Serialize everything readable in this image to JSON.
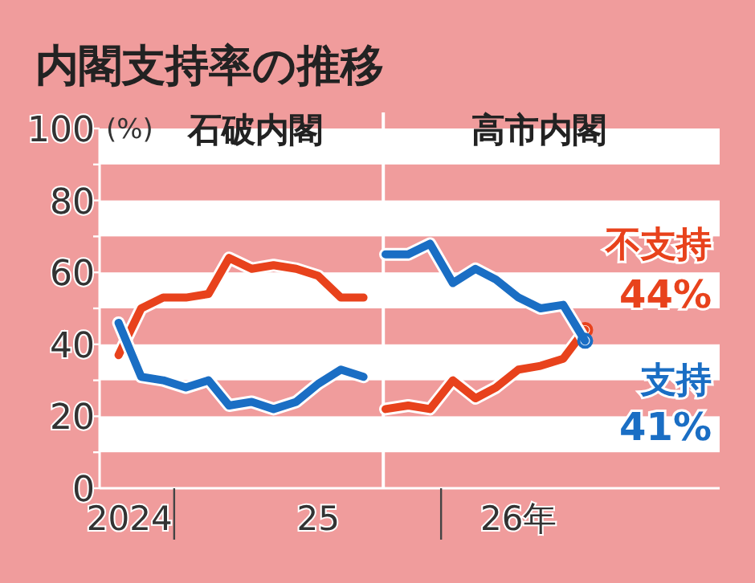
{
  "chart_data": {
    "type": "line",
    "title": "内閣支持率の推移",
    "ylabel": "(%)",
    "annotations": [
      "石破内閣",
      "高市内閣"
    ],
    "x": [
      "2024-10",
      "2024-11",
      "2024-12",
      "2025-01",
      "2025-02",
      "2025-03",
      "2025-04",
      "2025-05",
      "2025-06",
      "2025-07",
      "2025-08",
      "2025-09",
      "2025-10",
      "2025-11",
      "2025-12",
      "2026-01",
      "2026-02",
      "2026-03",
      "2026-04",
      "2026-05",
      "2026-06",
      "2026-07"
    ],
    "series": [
      {
        "name": "不支持",
        "color": "#e8421c",
        "values": [
          37,
          50,
          53,
          53,
          54,
          64,
          61,
          62,
          61,
          59,
          53,
          53,
          22,
          23,
          22,
          30,
          25,
          28,
          33,
          34,
          36,
          44
        ],
        "value_labels": [
          null,
          null,
          null,
          null,
          null,
          null,
          null,
          null,
          null,
          null,
          null,
          null,
          null,
          null,
          null,
          null,
          null,
          null,
          null,
          null,
          null,
          "44%"
        ]
      },
      {
        "name": "支持",
        "color": "#1a6ec4",
        "values": [
          46,
          31,
          30,
          28,
          30,
          23,
          24,
          22,
          24,
          29,
          33,
          31,
          65,
          65,
          68,
          57,
          61,
          58,
          53,
          50,
          51,
          41
        ],
        "value_labels": [
          null,
          null,
          null,
          null,
          null,
          null,
          null,
          null,
          null,
          null,
          null,
          null,
          null,
          null,
          null,
          null,
          null,
          null,
          null,
          null,
          null,
          "41%"
        ]
      }
    ],
    "xlim": [
      "2024-09-05",
      "2027-01"
    ],
    "xticks": [
      {
        "value": "2024-10-16",
        "label": "2024"
      },
      {
        "value": "2024-12-16",
        "label": null
      },
      {
        "value": "2025-07",
        "label": "25"
      },
      {
        "value": "2025-12-16",
        "label": null
      },
      {
        "value": "2026-04",
        "label": "26年"
      }
    ],
    "ylim": [
      0,
      100
    ],
    "yticks": [
      0,
      {
        "value": 10,
        "label": null
      },
      20,
      {
        "value": 30,
        "label": null
      },
      40,
      {
        "value": 50,
        "label": null
      },
      60,
      {
        "value": 70,
        "label": null
      },
      80,
      {
        "value": 90,
        "label": null
      },
      100
    ],
    "bands": [
      {
        "axis": "y",
        "from": 90,
        "to": 100,
        "color": "#ffffff"
      },
      {
        "axis": "y",
        "from": 70,
        "to": 80,
        "color": "#ffffff"
      },
      {
        "axis": "y",
        "from": 50,
        "to": 60,
        "color": "#ffffff"
      },
      {
        "axis": "y",
        "from": 30,
        "to": 40,
        "color": "#ffffff"
      },
      {
        "axis": "y",
        "from": 10,
        "to": 20,
        "color": "#ffffff"
      }
    ],
    "ref_lines": [
      {
        "axis": "x",
        "value": "2025-09-28",
        "color": "#ffffff"
      }
    ],
    "legend": false,
    "grid": false,
    "marker": "none",
    "line_style": "solid"
  }
}
